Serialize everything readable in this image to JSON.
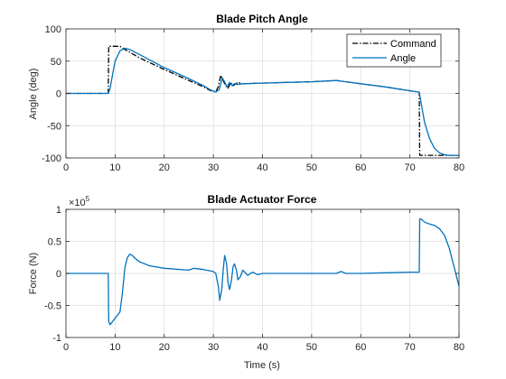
{
  "chart_data": [
    {
      "type": "line",
      "title": "Blade Pitch Angle",
      "xlabel": "",
      "ylabel": "Angle (deg)",
      "xlim": [
        0,
        80
      ],
      "ylim": [
        -100,
        100
      ],
      "xticks": [
        0,
        10,
        20,
        30,
        40,
        50,
        60,
        70,
        80
      ],
      "yticks": [
        -100,
        -50,
        0,
        50,
        100
      ],
      "grid": true,
      "legend_position": "top-right",
      "series": [
        {
          "name": "Command",
          "style": "dash-dot",
          "color": "#000000",
          "x": [
            0,
            8.6,
            8.7,
            11.0,
            12.0,
            15.0,
            20.0,
            25.0,
            28.0,
            29.5,
            30.5,
            31.0,
            31.5,
            32.0,
            32.5,
            33.0,
            33.5,
            34.0,
            35.0,
            36.0,
            40.0,
            45.0,
            50.0,
            55.0,
            60.0,
            65.0,
            70.0,
            71.9,
            72.0,
            75.0,
            80.0
          ],
          "y": [
            0,
            0,
            73,
            73,
            68,
            55,
            37,
            20,
            10,
            4,
            3,
            10,
            28,
            20,
            12,
            8,
            17,
            12,
            17,
            15,
            16,
            17,
            18,
            20,
            15,
            10,
            4,
            2,
            -96,
            -96,
            -96
          ]
        },
        {
          "name": "Angle",
          "style": "solid",
          "color": "#0072BD",
          "x": [
            0,
            8.6,
            9.0,
            9.5,
            10.0,
            11.0,
            12.0,
            13.0,
            15.0,
            18.0,
            20.0,
            25.0,
            28.0,
            29.5,
            30.5,
            31.2,
            31.8,
            32.3,
            32.8,
            33.3,
            33.8,
            34.3,
            35.0,
            36.0,
            40.0,
            45.0,
            50.0,
            55.0,
            60.0,
            65.0,
            70.0,
            71.9,
            72.3,
            73.0,
            74.0,
            75.0,
            76.0,
            77.0,
            78.0,
            79.0,
            80.0
          ],
          "y": [
            0,
            0,
            8,
            30,
            50,
            66,
            70,
            68,
            60,
            48,
            40,
            23,
            12,
            5,
            2,
            6,
            24,
            18,
            10,
            17,
            12,
            15,
            14,
            15,
            16,
            17,
            18,
            20,
            15,
            10,
            4,
            2,
            -15,
            -45,
            -70,
            -85,
            -92,
            -95,
            -96,
            -96,
            -96
          ]
        }
      ]
    },
    {
      "type": "line",
      "title": "Blade Actuator Force",
      "xlabel": "Time (s)",
      "ylabel": "Force (N)",
      "exponent_label": "×10",
      "exponent_power": "5",
      "xlim": [
        0,
        80
      ],
      "ylim": [
        -1,
        1
      ],
      "xticks": [
        0,
        10,
        20,
        30,
        40,
        50,
        60,
        70,
        80
      ],
      "yticks": [
        -1,
        -0.5,
        0,
        0.5,
        1
      ],
      "grid": true,
      "series": [
        {
          "name": "",
          "style": "solid",
          "color": "#0072BD",
          "x": [
            0,
            8.6,
            8.7,
            9.0,
            10.0,
            11.0,
            11.5,
            12.0,
            12.5,
            13.0,
            13.5,
            14.0,
            15.0,
            17.0,
            20.0,
            25.0,
            26.0,
            28.0,
            30.0,
            30.5,
            31.0,
            31.3,
            31.7,
            32.0,
            32.3,
            32.7,
            33.0,
            33.3,
            33.7,
            34.0,
            34.3,
            34.7,
            35.0,
            35.5,
            36.0,
            37.0,
            38.0,
            39.0,
            40.0,
            45.0,
            50.0,
            55.0,
            56.0,
            57.0,
            60.0,
            65.0,
            70.0,
            71.9,
            72.0,
            72.3,
            73.0,
            74.0,
            75.0,
            76.0,
            77.0,
            78.0,
            79.0,
            80.0
          ],
          "y": [
            0,
            0,
            -0.75,
            -0.8,
            -0.7,
            -0.6,
            -0.3,
            0.1,
            0.25,
            0.3,
            0.28,
            0.24,
            0.18,
            0.12,
            0.08,
            0.05,
            0.08,
            0.06,
            0.03,
            0.0,
            -0.2,
            -0.42,
            -0.25,
            0.05,
            0.28,
            0.15,
            -0.15,
            -0.25,
            -0.1,
            0.1,
            0.15,
            0.05,
            -0.1,
            -0.05,
            0.05,
            -0.03,
            0.02,
            -0.02,
            0.0,
            0.0,
            0.0,
            0.0,
            0.03,
            0.0,
            0.0,
            0.01,
            0.02,
            0.02,
            0.85,
            0.85,
            0.8,
            0.77,
            0.75,
            0.7,
            0.6,
            0.4,
            0.1,
            -0.2
          ]
        }
      ]
    }
  ]
}
